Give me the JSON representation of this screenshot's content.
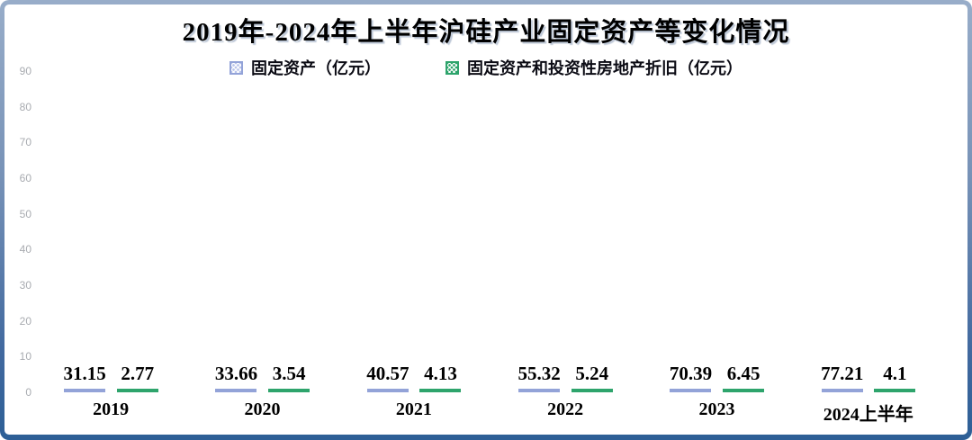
{
  "title": "2019年-2024年上半年沪硅产业固定资产等变化情况",
  "legend": {
    "items": [
      {
        "label": "固定资产（亿元）"
      },
      {
        "label": "固定资产和投资性房地产折旧（亿元）"
      }
    ]
  },
  "colors": {
    "frame_top": "#98adc9",
    "frame_bottom": "#2d5f96",
    "title_text": "#000000",
    "y_tick_text": "#a8abb0",
    "fixed_assets_border": "#93a3d8",
    "fixed_assets_dots": "#b9c4ea",
    "depreciation_border": "#2ea46c",
    "depreciation_dots": "#2ea46c"
  },
  "chart_data": {
    "type": "bar",
    "categories": [
      "2019",
      "2020",
      "2021",
      "2022",
      "2023",
      "2024上半年"
    ],
    "series": [
      {
        "name": "固定资产（亿元）",
        "values": [
          31.15,
          33.66,
          40.57,
          55.32,
          70.39,
          77.21
        ],
        "labels": [
          "31.15",
          "33.66",
          "40.57",
          "55.32",
          "70.39",
          "77.21"
        ],
        "border_color": "#93a3d8",
        "dot_color": "#b9c4ea"
      },
      {
        "name": "固定资产和投资性房地产折旧（亿元）",
        "values": [
          2.77,
          3.54,
          4.13,
          5.24,
          6.45,
          4.1
        ],
        "labels": [
          "2.77",
          "3.54",
          "4.13",
          "5.24",
          "6.45",
          "4.1"
        ],
        "border_color": "#2ea46c",
        "dot_color": "#2ea46c"
      }
    ],
    "title": "2019年-2024年上半年沪硅产业固定资产等变化情况",
    "xlabel": "",
    "ylabel": "",
    "ylim": [
      0,
      90
    ],
    "yticks": [
      0,
      10,
      20,
      30,
      40,
      50,
      60,
      70,
      80,
      90
    ],
    "grid": false,
    "legend_position": "top",
    "value_labels": "above bars"
  }
}
